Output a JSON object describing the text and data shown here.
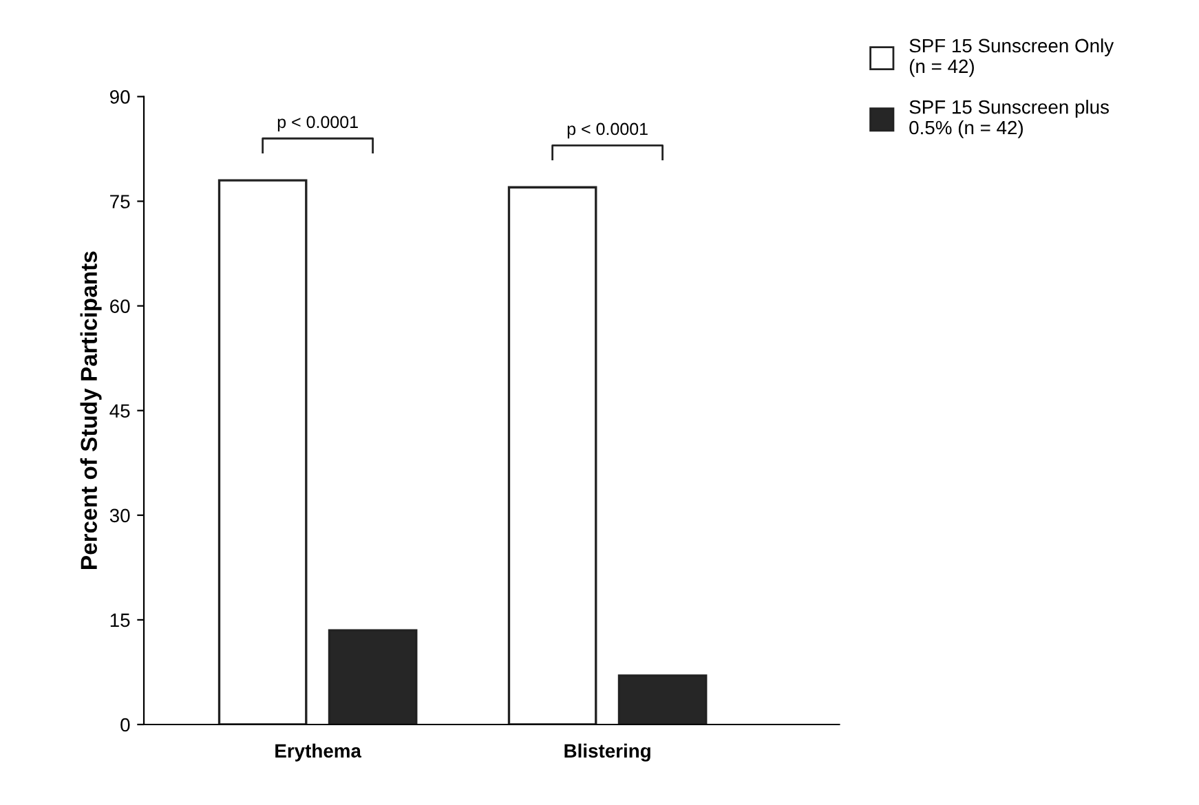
{
  "chart_data": {
    "type": "bar",
    "categories": [
      "Erythema",
      "Blistering"
    ],
    "series": [
      {
        "name": "SPF 15 Sunscreen Only\n(n = 42)",
        "color": "#ffffff",
        "values": [
          78,
          77
        ]
      },
      {
        "name": "SPF 15 Sunscreen plus\n0.5% (n = 42)",
        "color": "#262626",
        "values": [
          13.5,
          7
        ]
      }
    ],
    "ylabel": "Percent of Study Participants",
    "ylim": [
      0,
      90
    ],
    "yticks": [
      0,
      15,
      30,
      45,
      60,
      75,
      90
    ],
    "annotations": [
      "p < 0.0001",
      "p < 0.0001"
    ],
    "legend": "top right",
    "grid": false
  }
}
